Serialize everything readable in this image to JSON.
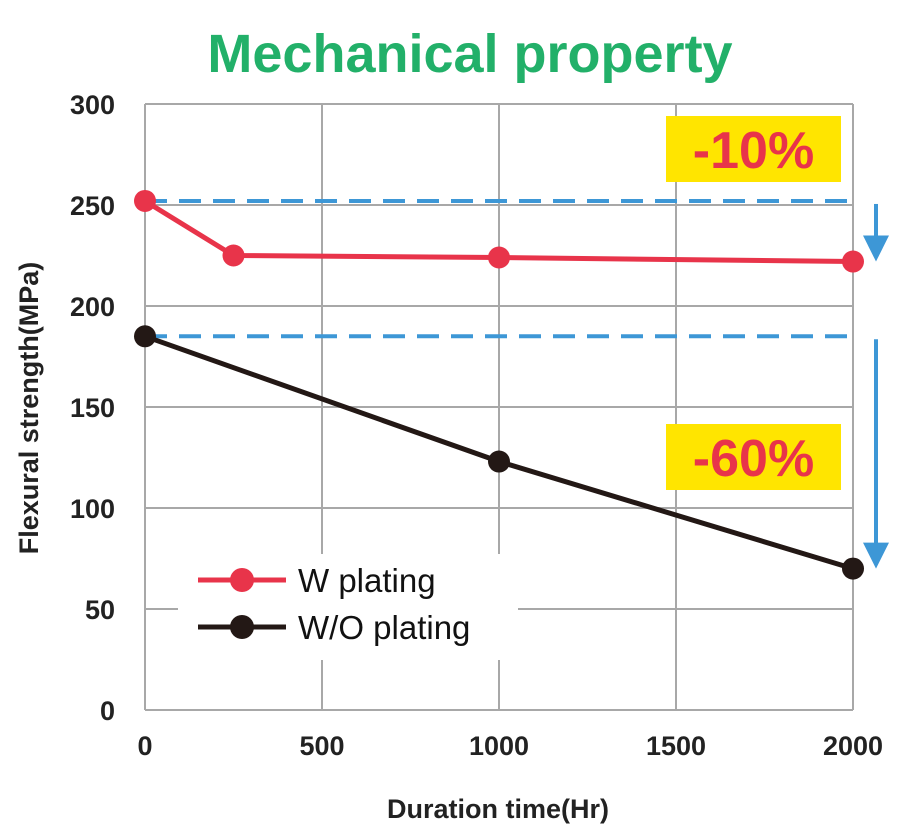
{
  "chart_data": {
    "type": "line",
    "title": "Mechanical property",
    "xlabel": "Duration time(Hr)",
    "ylabel": "Flexural strength(MPa)",
    "xlim": [
      0,
      2000
    ],
    "ylim": [
      0,
      300
    ],
    "xticks": [
      "0",
      "500",
      "1000",
      "1500",
      "2000"
    ],
    "yticks": [
      "0",
      "50",
      "100",
      "150",
      "200",
      "250",
      "300"
    ],
    "xtick_values": [
      0,
      500,
      1000,
      1500,
      2000
    ],
    "ytick_values": [
      0,
      50,
      100,
      150,
      200,
      250,
      300
    ],
    "grid": true,
    "legend_position": "bottom-left",
    "series": [
      {
        "name": "W plating",
        "color": "#e8344a",
        "x": [
          0,
          250,
          1000,
          2000
        ],
        "y": [
          252,
          225,
          224,
          222
        ]
      },
      {
        "name": "W/O plating",
        "color": "#231815",
        "x": [
          0,
          1000,
          2000
        ],
        "y": [
          185,
          123,
          70
        ]
      }
    ],
    "reference_lines": [
      {
        "y": 252,
        "color": "#3d97d6",
        "style": "dashed"
      },
      {
        "y": 185,
        "color": "#3d97d6",
        "style": "dashed"
      }
    ],
    "annotations": [
      {
        "text": "-10%",
        "y_from": 252,
        "y_to": 222,
        "background": "#ffe500",
        "color": "#e8344a"
      },
      {
        "text": "-60%",
        "y_from": 185,
        "y_to": 70,
        "background": "#ffe500",
        "color": "#e8344a"
      }
    ]
  }
}
